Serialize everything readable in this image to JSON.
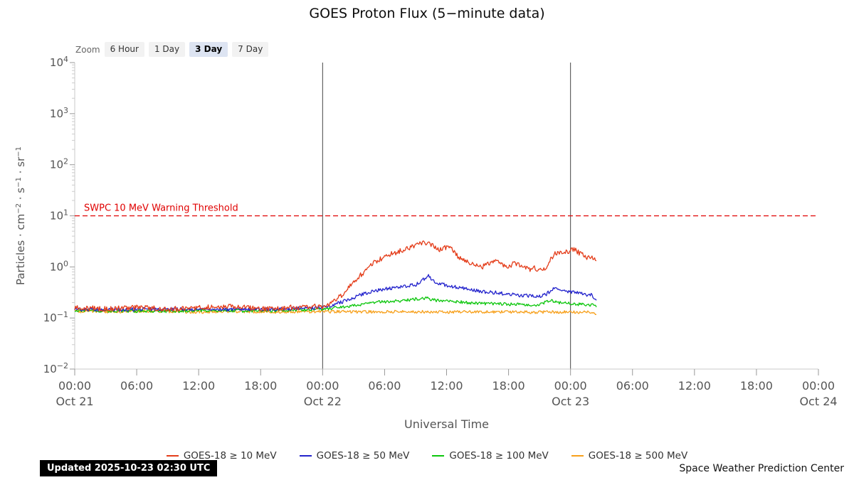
{
  "page": {
    "title": "GOES Proton Flux (5−minute data)",
    "updated": "Updated 2025-10-23 02:30 UTC",
    "credit": "Space Weather Prediction Center"
  },
  "zoom": {
    "label": "Zoom",
    "buttons": [
      {
        "label": "6 Hour",
        "selected": false
      },
      {
        "label": "1 Day",
        "selected": false
      },
      {
        "label": "3 Day",
        "selected": true
      },
      {
        "label": "7 Day",
        "selected": false
      }
    ]
  },
  "chart_data": {
    "type": "line",
    "title": "GOES Proton Flux (5−minute data)",
    "xlabel": "Universal Time",
    "ylabel": "Particles · cm⁻² · s⁻¹ · sr⁻¹",
    "ylabel_parts": [
      {
        "text": "Particles · cm"
      },
      {
        "sup": "-2"
      },
      {
        "text": " · s"
      },
      {
        "sup": "-1"
      },
      {
        "text": " · sr"
      },
      {
        "sup": "-1"
      }
    ],
    "y_scale": "log",
    "ylim": [
      0.01,
      10000
    ],
    "y_tick_exponents": [
      4,
      3,
      2,
      1,
      0,
      -1,
      -2
    ],
    "x_range_hours": [
      0,
      72
    ],
    "x_ticks": [
      {
        "t": 0,
        "time": "00:00",
        "date": "Oct 21"
      },
      {
        "t": 6,
        "time": "06:00"
      },
      {
        "t": 12,
        "time": "12:00"
      },
      {
        "t": 18,
        "time": "18:00"
      },
      {
        "t": 24,
        "time": "00:00",
        "date": "Oct 22"
      },
      {
        "t": 30,
        "time": "06:00"
      },
      {
        "t": 36,
        "time": "12:00"
      },
      {
        "t": 42,
        "time": "18:00"
      },
      {
        "t": 48,
        "time": "00:00",
        "date": "Oct 23"
      },
      {
        "t": 54,
        "time": "06:00"
      },
      {
        "t": 60,
        "time": "12:00"
      },
      {
        "t": 66,
        "time": "18:00"
      },
      {
        "t": 72,
        "time": "00:00",
        "date": "Oct 24"
      }
    ],
    "day_boundaries_hours": [
      24,
      48
    ],
    "threshold": {
      "label": "SWPC 10 MeV Warning Threshold",
      "value": 10,
      "color": "#e00000"
    },
    "legend_position": "bottom",
    "grid": false,
    "series": [
      {
        "name": "GOES-18 ≥ 10 MeV",
        "color": "#e43d1a",
        "noise": 0.05,
        "points": [
          [
            0,
            0.16
          ],
          [
            3,
            0.15
          ],
          [
            6,
            0.16
          ],
          [
            9,
            0.15
          ],
          [
            12,
            0.16
          ],
          [
            15,
            0.17
          ],
          [
            18,
            0.15
          ],
          [
            21,
            0.16
          ],
          [
            24,
            0.17
          ],
          [
            25,
            0.2
          ],
          [
            26,
            0.3
          ],
          [
            27,
            0.5
          ],
          [
            28,
            0.8
          ],
          [
            29,
            1.2
          ],
          [
            30,
            1.6
          ],
          [
            31,
            1.9
          ],
          [
            32,
            2.2
          ],
          [
            33,
            2.6
          ],
          [
            33.5,
            2.9
          ],
          [
            34,
            3.0
          ],
          [
            34.5,
            2.7
          ],
          [
            35,
            2.4
          ],
          [
            35.5,
            2.1
          ],
          [
            36,
            2.5
          ],
          [
            36.5,
            2.3
          ],
          [
            37,
            1.7
          ],
          [
            37.5,
            1.4
          ],
          [
            38,
            1.25
          ],
          [
            39,
            1.1
          ],
          [
            39.5,
            1.0
          ],
          [
            40,
            1.15
          ],
          [
            40.5,
            1.3
          ],
          [
            41,
            1.25
          ],
          [
            41.5,
            1.1
          ],
          [
            42,
            1.05
          ],
          [
            42.5,
            1.15
          ],
          [
            43,
            1.1
          ],
          [
            43.5,
            0.95
          ],
          [
            44,
            0.9
          ],
          [
            44.5,
            0.95
          ],
          [
            45,
            0.85
          ],
          [
            45.5,
            0.9
          ],
          [
            46,
            1.4
          ],
          [
            46.5,
            1.8
          ],
          [
            47,
            2.0
          ],
          [
            47.5,
            1.9
          ],
          [
            48,
            2.1
          ],
          [
            48.4,
            2.2
          ],
          [
            48.8,
            1.9
          ],
          [
            49.2,
            1.7
          ],
          [
            49.6,
            1.5
          ],
          [
            50,
            1.6
          ],
          [
            50.5,
            1.4
          ]
        ]
      },
      {
        "name": "GOES-18 ≥ 50 MeV",
        "color": "#2323cc",
        "noise": 0.035,
        "points": [
          [
            0,
            0.15
          ],
          [
            4,
            0.145
          ],
          [
            8,
            0.15
          ],
          [
            12,
            0.148
          ],
          [
            16,
            0.145
          ],
          [
            20,
            0.15
          ],
          [
            24,
            0.16
          ],
          [
            25,
            0.18
          ],
          [
            26,
            0.21
          ],
          [
            27,
            0.25
          ],
          [
            28,
            0.3
          ],
          [
            29,
            0.34
          ],
          [
            30,
            0.37
          ],
          [
            31,
            0.39
          ],
          [
            32,
            0.41
          ],
          [
            33,
            0.45
          ],
          [
            33.5,
            0.52
          ],
          [
            34,
            0.62
          ],
          [
            34.3,
            0.68
          ],
          [
            34.6,
            0.56
          ],
          [
            35,
            0.48
          ],
          [
            36,
            0.44
          ],
          [
            37,
            0.4
          ],
          [
            38,
            0.37
          ],
          [
            39,
            0.34
          ],
          [
            40,
            0.32
          ],
          [
            41,
            0.31
          ],
          [
            42,
            0.29
          ],
          [
            43,
            0.28
          ],
          [
            44,
            0.27
          ],
          [
            45,
            0.26
          ],
          [
            45.5,
            0.28
          ],
          [
            46,
            0.33
          ],
          [
            46.5,
            0.38
          ],
          [
            47,
            0.34
          ],
          [
            47.5,
            0.33
          ],
          [
            48,
            0.32
          ],
          [
            48.5,
            0.31
          ],
          [
            49,
            0.3
          ],
          [
            49.5,
            0.28
          ],
          [
            50,
            0.29
          ],
          [
            50.5,
            0.23
          ]
        ]
      },
      {
        "name": "GOES-18 ≥ 100 MeV",
        "color": "#0cc60c",
        "noise": 0.03,
        "points": [
          [
            0,
            0.14
          ],
          [
            4,
            0.138
          ],
          [
            8,
            0.135
          ],
          [
            12,
            0.14
          ],
          [
            16,
            0.138
          ],
          [
            20,
            0.14
          ],
          [
            24,
            0.15
          ],
          [
            25,
            0.155
          ],
          [
            26,
            0.165
          ],
          [
            27,
            0.175
          ],
          [
            28,
            0.19
          ],
          [
            29,
            0.2
          ],
          [
            30,
            0.21
          ],
          [
            31,
            0.215
          ],
          [
            32,
            0.22
          ],
          [
            33,
            0.235
          ],
          [
            34,
            0.245
          ],
          [
            34.5,
            0.23
          ],
          [
            35,
            0.22
          ],
          [
            36,
            0.215
          ],
          [
            37,
            0.21
          ],
          [
            38,
            0.2
          ],
          [
            39,
            0.195
          ],
          [
            40,
            0.19
          ],
          [
            41,
            0.19
          ],
          [
            42,
            0.185
          ],
          [
            43,
            0.185
          ],
          [
            44,
            0.18
          ],
          [
            45,
            0.18
          ],
          [
            45.5,
            0.2
          ],
          [
            46,
            0.22
          ],
          [
            46.5,
            0.21
          ],
          [
            47,
            0.2
          ],
          [
            48,
            0.19
          ],
          [
            49,
            0.185
          ],
          [
            50,
            0.18
          ],
          [
            50.5,
            0.17
          ]
        ]
      },
      {
        "name": "GOES-18 ≥ 500 MeV",
        "color": "#f7a01b",
        "noise": 0.028,
        "points": [
          [
            0,
            0.135
          ],
          [
            4,
            0.132
          ],
          [
            8,
            0.135
          ],
          [
            12,
            0.131
          ],
          [
            16,
            0.134
          ],
          [
            20,
            0.131
          ],
          [
            24,
            0.134
          ],
          [
            28,
            0.132
          ],
          [
            32,
            0.133
          ],
          [
            36,
            0.131
          ],
          [
            40,
            0.132
          ],
          [
            44,
            0.13
          ],
          [
            48,
            0.131
          ],
          [
            50,
            0.129
          ],
          [
            50.5,
            0.122
          ]
        ]
      }
    ]
  }
}
